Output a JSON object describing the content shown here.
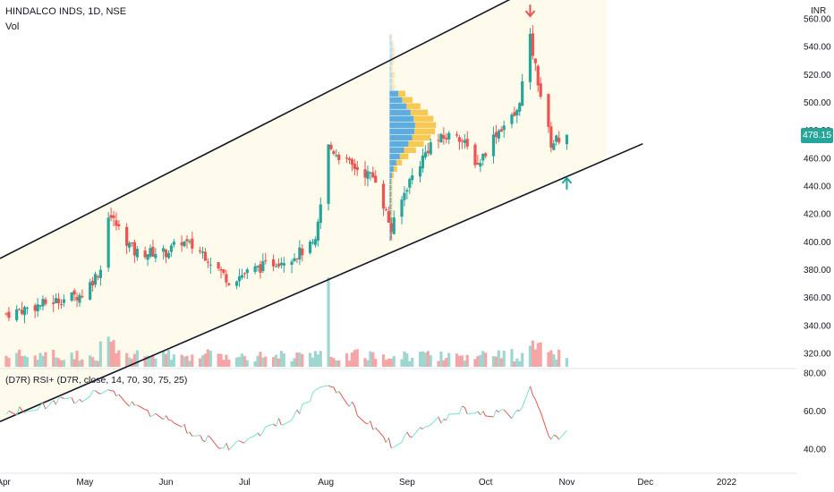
{
  "header": {
    "symbol_line": "HINDALCO INDS, 1D, NSE",
    "volume_label": "Vol",
    "rsi_label": "(D7R) RSI+ (D7R, close, 14, 70, 30, 75, 25)",
    "currency": "INR",
    "last_price": "478.15"
  },
  "colors": {
    "up": "#26a69a",
    "down": "#ef5350",
    "vol_up": "#9fd6cf",
    "vol_down": "#f5a5a5",
    "rsi_high": "#79e0cd",
    "rsi_low": "#e05757",
    "channel_fill": "#fffbea",
    "profile_blue": "#4aa3df",
    "profile_yellow": "#f6c343"
  },
  "chart_data": {
    "type": "candlestick",
    "price_axis": {
      "ticks": [
        "560.00",
        "540.00",
        "520.00",
        "500.00",
        "480.00",
        "460.00",
        "440.00",
        "420.00",
        "400.00",
        "380.00",
        "360.00",
        "340.00",
        "320.00"
      ],
      "range": [
        310,
        568
      ]
    },
    "rsi_axis": {
      "ticks": [
        "80.00",
        "60.00",
        "40.00"
      ],
      "range": [
        28,
        82
      ]
    },
    "x_labels": [
      "Apr",
      "May",
      "Jun",
      "Jul",
      "Aug",
      "Sep",
      "Oct",
      "Nov",
      "Dec",
      "2022"
    ],
    "channel": {
      "upper": [
        {
          "date": "2021-04-01",
          "price": 390
        },
        {
          "date": "2021-11-30",
          "price": 622
        }
      ],
      "lower": [
        {
          "date": "2021-05-17",
          "price": 310
        },
        {
          "date": "2021-11-30",
          "price": 470
        }
      ]
    },
    "annotations": [
      {
        "type": "arrow-down",
        "color": "#ef5350",
        "date": "2021-10-18",
        "price": 566
      },
      {
        "type": "arrow-up",
        "color": "#26a69a",
        "date": "2021-11-01",
        "price": 441
      }
    ],
    "ohlc_close_path": [
      {
        "date": "2021-04-01",
        "close": 348
      },
      {
        "date": "2021-04-15",
        "close": 355
      },
      {
        "date": "2021-04-30",
        "close": 362
      },
      {
        "date": "2021-05-07",
        "close": 380
      },
      {
        "date": "2021-05-10",
        "close": 420
      },
      {
        "date": "2021-05-20",
        "close": 392
      },
      {
        "date": "2021-06-01",
        "close": 392
      },
      {
        "date": "2021-06-07",
        "close": 400
      },
      {
        "date": "2021-06-15",
        "close": 392
      },
      {
        "date": "2021-06-25",
        "close": 372
      },
      {
        "date": "2021-07-05",
        "close": 380
      },
      {
        "date": "2021-07-20",
        "close": 390
      },
      {
        "date": "2021-07-28",
        "close": 398
      },
      {
        "date": "2021-08-02",
        "close": 468
      },
      {
        "date": "2021-08-10",
        "close": 455
      },
      {
        "date": "2021-08-20",
        "close": 445
      },
      {
        "date": "2021-08-26",
        "close": 408
      },
      {
        "date": "2021-09-01",
        "close": 440
      },
      {
        "date": "2021-09-10",
        "close": 470
      },
      {
        "date": "2021-09-20",
        "close": 478
      },
      {
        "date": "2021-09-28",
        "close": 455
      },
      {
        "date": "2021-10-05",
        "close": 478
      },
      {
        "date": "2021-10-13",
        "close": 492
      },
      {
        "date": "2021-10-18",
        "close": 545
      },
      {
        "date": "2021-10-22",
        "close": 505
      },
      {
        "date": "2021-10-26",
        "close": 470
      },
      {
        "date": "2021-11-01",
        "close": 478.15
      }
    ],
    "rsi_path": [
      {
        "date": "2021-04-01",
        "rsi": 58
      },
      {
        "date": "2021-05-10",
        "rsi": 70
      },
      {
        "date": "2021-06-01",
        "rsi": 55
      },
      {
        "date": "2021-06-25",
        "rsi": 40
      },
      {
        "date": "2021-07-20",
        "rsi": 58
      },
      {
        "date": "2021-08-02",
        "rsi": 75
      },
      {
        "date": "2021-08-26",
        "rsi": 42
      },
      {
        "date": "2021-09-20",
        "rsi": 60
      },
      {
        "date": "2021-10-13",
        "rsi": 58
      },
      {
        "date": "2021-10-18",
        "rsi": 71
      },
      {
        "date": "2021-10-26",
        "rsi": 45
      },
      {
        "date": "2021-11-01",
        "rsi": 48
      }
    ]
  }
}
